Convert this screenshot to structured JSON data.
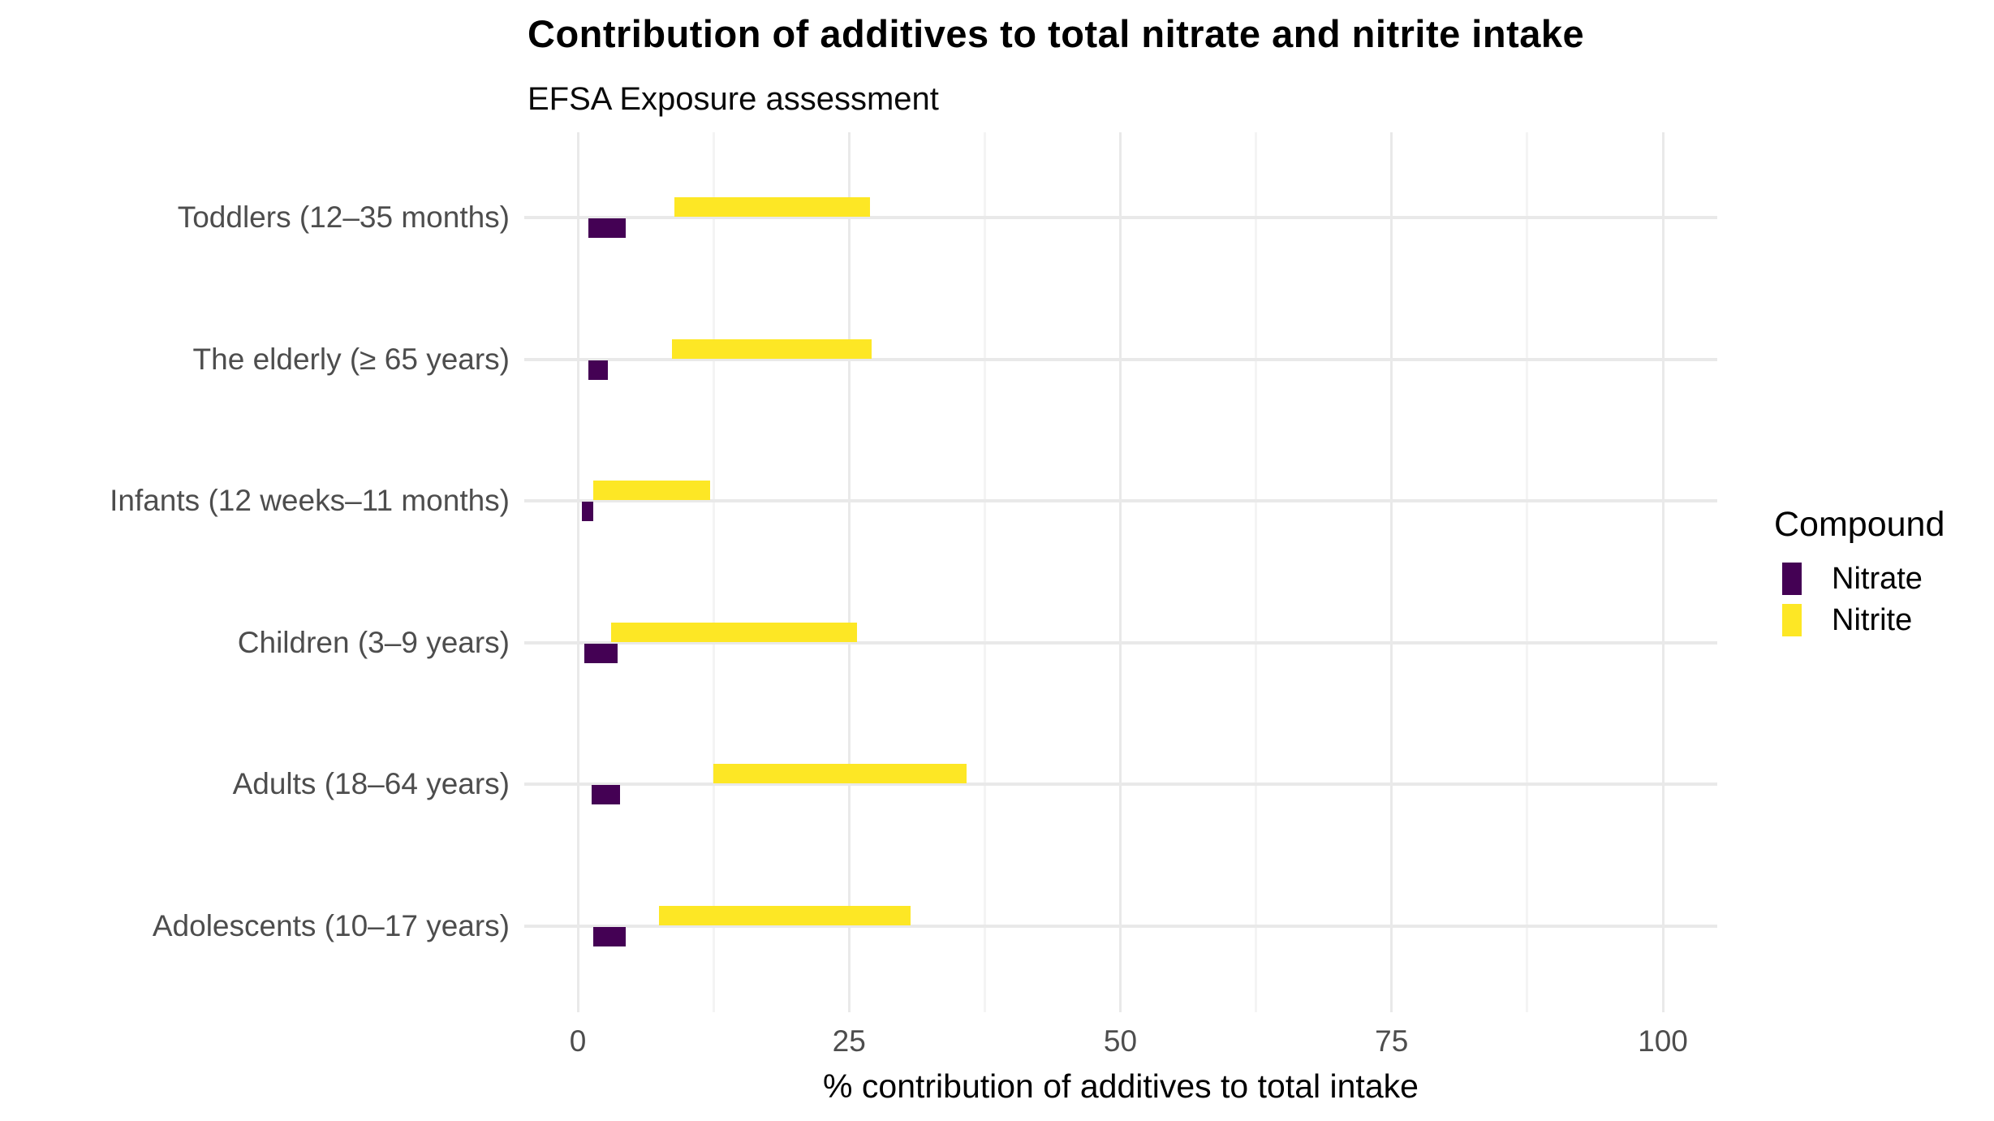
{
  "chart_data": {
    "type": "bar",
    "subtype": "horizontal-range-crossbar",
    "title": "Contribution of additives to total nitrate and nitrite intake",
    "subtitle": "EFSA Exposure assessment",
    "xlabel": "% contribution of additives to total intake",
    "ylabel": "",
    "xlim": [
      0,
      100
    ],
    "x_ticks": [
      0,
      25,
      50,
      75,
      100
    ],
    "x_minor_ticks": [
      12.5,
      37.5,
      62.5,
      87.5
    ],
    "grid": true,
    "categories": [
      "Toddlers (12–35 months)",
      "The elderly (≥ 65 years)",
      "Infants (12 weeks–11 months)",
      "Children (3–9 years)",
      "Adults (18–64 years)",
      "Adolescents (10–17 years)"
    ],
    "series": [
      {
        "name": "Nitrate",
        "color": "#440154",
        "ranges_pct": [
          [
            1.0,
            4.4
          ],
          [
            1.0,
            2.8
          ],
          [
            0.4,
            1.4
          ],
          [
            0.6,
            3.7
          ],
          [
            1.3,
            3.9
          ],
          [
            1.4,
            4.4
          ]
        ]
      },
      {
        "name": "Nitrite",
        "color": "#FDE725",
        "ranges_pct": [
          [
            8.9,
            26.9
          ],
          [
            8.7,
            27.1
          ],
          [
            1.4,
            12.2
          ],
          [
            3.1,
            25.7
          ],
          [
            12.5,
            35.8
          ],
          [
            7.5,
            30.7
          ]
        ]
      }
    ],
    "legend": {
      "title": "Compound",
      "position": "right",
      "entries": [
        {
          "label": "Nitrate",
          "color": "#440154"
        },
        {
          "label": "Nitrite",
          "color": "#FDE725"
        }
      ]
    },
    "colors": {
      "background": "#ffffff",
      "grid_major": "#E9E9E9",
      "grid_minor": "#F4F4F4",
      "axis_text": "#4D4D4D",
      "text": "#000000"
    }
  }
}
